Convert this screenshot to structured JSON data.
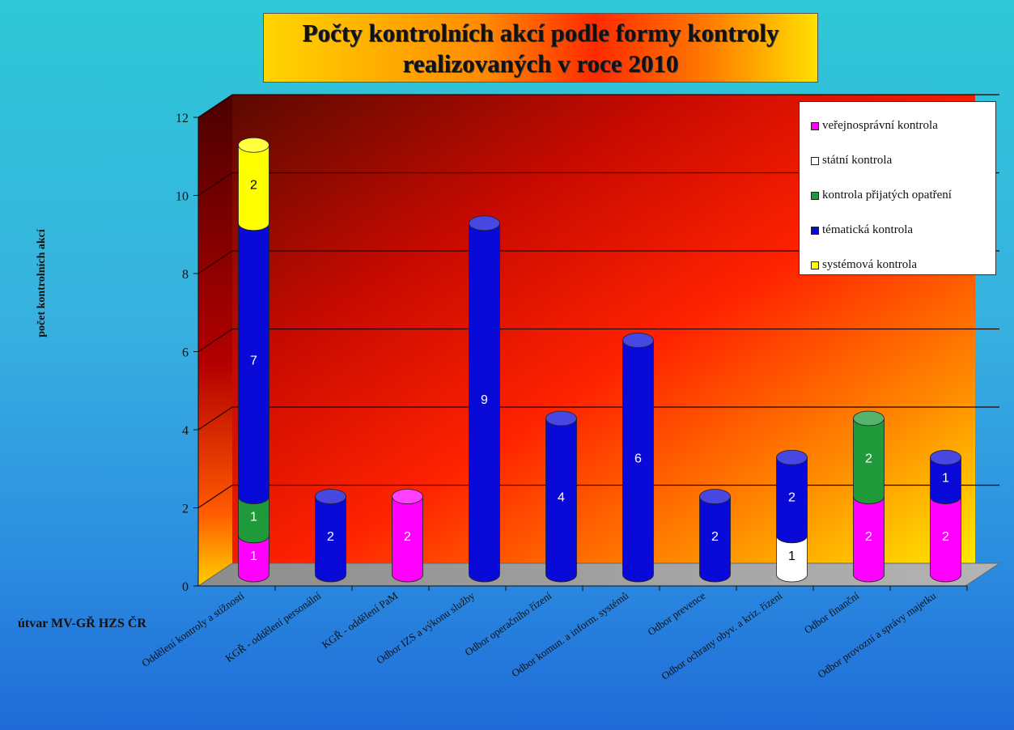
{
  "title": {
    "line1": "Počty kontrolních akcí podle formy kontroly",
    "line2": "realizovaných v roce 2010"
  },
  "chart_data": {
    "type": "bar",
    "stacked": true,
    "style": "3d-cylinder",
    "title": "Počty kontrolních akcí podle formy kontroly realizovaných v roce 2010",
    "xlabel": "útvar MV-GŘ HZS ČR",
    "ylabel": "počet kontrolních akcí",
    "ylim": [
      0,
      12
    ],
    "yticks": [
      0,
      2,
      4,
      6,
      8,
      10,
      12
    ],
    "grid": true,
    "legend_position": "top-right",
    "categories": [
      "Oddělení kontroly a stížností",
      "KGŘ - oddělení personální",
      "KGŘ - oddělení PaM",
      "Odbor IZS a výkonu služby",
      "Odbor operačního řízení",
      "Odbor komun. a inform. systémů",
      "Odbor prevence",
      "Odbor ochrany obyv. a kriz. řízení",
      "Odbor finanční",
      "Odbor provozní a správy majetku"
    ],
    "series": [
      {
        "name": "veřejnosprávní kontrola",
        "color": "#ff00ff",
        "label_color": "#ffffff",
        "values": [
          1,
          0,
          2,
          0,
          0,
          0,
          0,
          0,
          2,
          2
        ]
      },
      {
        "name": "státní kontrola",
        "color": "#ffffff",
        "label_color": "#000000",
        "values": [
          0,
          0,
          0,
          0,
          0,
          0,
          0,
          1,
          0,
          0
        ]
      },
      {
        "name": "kontrola přijatých opatření",
        "color": "#1f9a3a",
        "label_color": "#ffffff",
        "values": [
          1,
          0,
          0,
          0,
          0,
          0,
          0,
          0,
          2,
          0
        ]
      },
      {
        "name": "tématická kontrola",
        "color": "#0a0ad8",
        "label_color": "#ffffff",
        "values": [
          7,
          2,
          0,
          9,
          4,
          6,
          2,
          2,
          0,
          1
        ]
      },
      {
        "name": "systémová kontrola",
        "color": "#ffff00",
        "label_color": "#000000",
        "values": [
          2,
          0,
          0,
          0,
          0,
          0,
          0,
          0,
          0,
          0
        ]
      }
    ]
  }
}
